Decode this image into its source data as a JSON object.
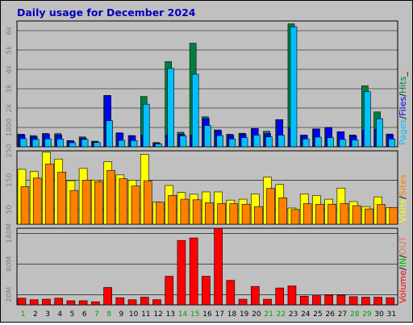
{
  "title": "Daily usage for December 2024",
  "chart_data": [
    {
      "type": "bar",
      "name": "hits-files-pages",
      "ylim": [
        0,
        6500
      ],
      "y_ticks": [
        1000,
        2000,
        3000,
        4000,
        5000,
        6000
      ],
      "y_tick_labels": [
        "1000",
        "2k",
        "3k",
        "4k",
        "5k",
        "6k"
      ],
      "legend": [
        "Pages",
        "/",
        "Files",
        "/",
        "Hits",
        "_"
      ],
      "series": [
        {
          "name": "Hits",
          "color": "#008040",
          "values": [
            650,
            580,
            690,
            680,
            320,
            510,
            290,
            2650,
            720,
            580,
            2600,
            220,
            4400,
            750,
            5350,
            1550,
            870,
            650,
            700,
            940,
            800,
            1400,
            6350,
            600,
            920,
            980,
            770,
            610,
            3150,
            1800,
            660
          ]
        },
        {
          "name": "Files",
          "color": "#0000ff",
          "values": [
            620,
            520,
            640,
            610,
            300,
            450,
            250,
            2650,
            700,
            560,
            600,
            180,
            600,
            650,
            600,
            1450,
            830,
            600,
            660,
            940,
            680,
            1400,
            1000,
            600,
            920,
            1000,
            780,
            570,
            850,
            900,
            620
          ]
        },
        {
          "name": "Pages",
          "color": "#00c0ff",
          "values": [
            420,
            380,
            410,
            400,
            210,
            380,
            220,
            1350,
            330,
            320,
            2200,
            150,
            4050,
            560,
            3750,
            1100,
            580,
            400,
            470,
            600,
            510,
            600,
            6200,
            400,
            500,
            470,
            380,
            350,
            2850,
            1450,
            400
          ]
        }
      ]
    },
    {
      "type": "bar",
      "name": "visits-sites",
      "ylim": [
        0,
        250
      ],
      "y_ticks": [
        50,
        150,
        250
      ],
      "y_tick_labels": [
        "50",
        "150",
        "250"
      ],
      "legend": [
        "Visits",
        "/",
        "Sites"
      ],
      "series": [
        {
          "name": "Visits",
          "color": "#ffff00",
          "values": [
            187,
            180,
            245,
            222,
            148,
            190,
            150,
            213,
            168,
            150,
            238,
            75,
            132,
            108,
            102,
            110,
            110,
            82,
            85,
            103,
            160,
            135,
            55,
            103,
            98,
            85,
            123,
            77,
            60,
            93,
            57
          ]
        },
        {
          "name": "Sites",
          "color": "#ff8000",
          "values": [
            128,
            157,
            205,
            177,
            115,
            150,
            145,
            183,
            155,
            130,
            148,
            75,
            98,
            85,
            83,
            73,
            70,
            70,
            68,
            60,
            122,
            90,
            50,
            70,
            68,
            68,
            70,
            63,
            52,
            67,
            57
          ]
        }
      ]
    },
    {
      "type": "bar",
      "name": "volume-in-out",
      "ylim": [
        0,
        150
      ],
      "y_ticks": [
        20,
        80,
        140
      ],
      "y_tick_labels": [
        "20M",
        "80M",
        "140M"
      ],
      "legend": [
        "Volume",
        "/",
        "IN",
        "/",
        "OUT"
      ],
      "series": [
        {
          "name": "Volume",
          "color": "#ff0000",
          "values": [
            13,
            10,
            11,
            13,
            8,
            8,
            6,
            34,
            14,
            10,
            15,
            10,
            56,
            126,
            131,
            56,
            150,
            48,
            11,
            36,
            11,
            33,
            37,
            17,
            18,
            19,
            19,
            16,
            15,
            15,
            14
          ]
        },
        {
          "name": "IN",
          "color": "#00c000",
          "values": [
            0,
            0,
            0,
            0,
            0,
            0,
            0,
            0,
            0,
            0,
            0,
            0,
            0,
            0,
            0,
            0,
            0,
            0,
            0,
            0,
            0,
            0,
            0,
            0,
            0,
            0,
            0,
            0,
            0,
            0,
            0
          ]
        },
        {
          "name": "OUT",
          "color": "#e87850",
          "values": [
            13,
            10,
            11,
            13,
            8,
            8,
            6,
            34,
            14,
            10,
            15,
            10,
            56,
            126,
            131,
            56,
            150,
            48,
            11,
            36,
            11,
            33,
            37,
            17,
            18,
            19,
            19,
            16,
            15,
            15,
            14
          ]
        }
      ]
    }
  ],
  "days": [
    "1",
    "2",
    "3",
    "4",
    "5",
    "6",
    "7",
    "8",
    "9",
    "10",
    "11",
    "12",
    "13",
    "14",
    "15",
    "16",
    "17",
    "18",
    "19",
    "20",
    "21",
    "22",
    "23",
    "24",
    "25",
    "26",
    "27",
    "28",
    "29",
    "30",
    "31"
  ],
  "weekend_days": [
    "1",
    "7",
    "8",
    "14",
    "15",
    "21",
    "22",
    "28",
    "29"
  ],
  "colors": {
    "background": "#c0c0c0",
    "grid": "#000000",
    "weekday_label": "#000000",
    "weekend_label": "#00a000",
    "sep": "#808080"
  }
}
